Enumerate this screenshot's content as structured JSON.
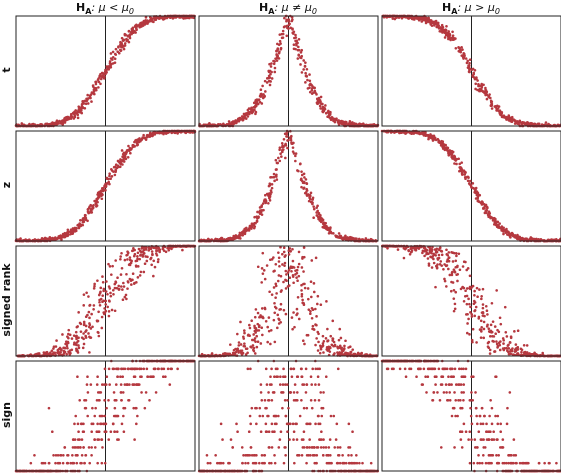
{
  "chart_data": {
    "type": "scatter",
    "title": "",
    "columns": [
      {
        "key": "less",
        "title_prefix": "H",
        "title_sub": "A",
        "title_rel": ": μ < μ",
        "title_rel_sub": "0"
      },
      {
        "key": "neq",
        "title_prefix": "H",
        "title_sub": "A",
        "title_rel": ": μ ≠ μ",
        "title_rel_sub": "0"
      },
      {
        "key": "greater",
        "title_prefix": "H",
        "title_sub": "A",
        "title_rel": ": μ > μ",
        "title_rel_sub": "0"
      }
    ],
    "rows": [
      {
        "key": "t",
        "label": "t"
      },
      {
        "key": "z",
        "label": "z"
      },
      {
        "key": "signed_rank",
        "label": "signed rank"
      },
      {
        "key": "sign",
        "label": "sign"
      }
    ],
    "xlim": [
      -3.6,
      3.6
    ],
    "ylim": [
      0,
      1
    ],
    "null_value": 0,
    "grid": false,
    "legend": "none",
    "point_color": "#b5383f",
    "n_points_per_panel": 500
  }
}
